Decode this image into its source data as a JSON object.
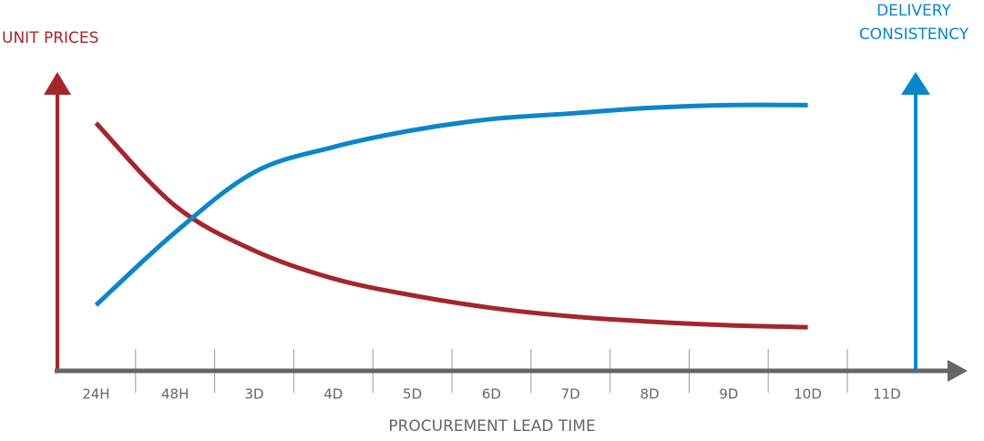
{
  "chart_data": {
    "type": "line",
    "x_label": "PROCUREMENT LEAD TIME",
    "categories": [
      "24H",
      "48H",
      "3D",
      "4D",
      "5D",
      "6D",
      "7D",
      "8D",
      "9D",
      "10D",
      "11D"
    ],
    "ylim": [
      0,
      100
    ],
    "series": [
      {
        "name": "UNIT PRICES",
        "color": "#a4262c",
        "values": [
          88.6,
          59,
          43,
          33,
          27,
          22.5,
          19.5,
          17.6,
          16.3,
          15.6,
          null
        ]
      },
      {
        "name": "DELIVERY CONSISTENCY",
        "color": "#0a86c9",
        "values": [
          23.5,
          49.5,
          71,
          80,
          86,
          90,
          92,
          94,
          95,
          95,
          null
        ]
      }
    ]
  }
}
